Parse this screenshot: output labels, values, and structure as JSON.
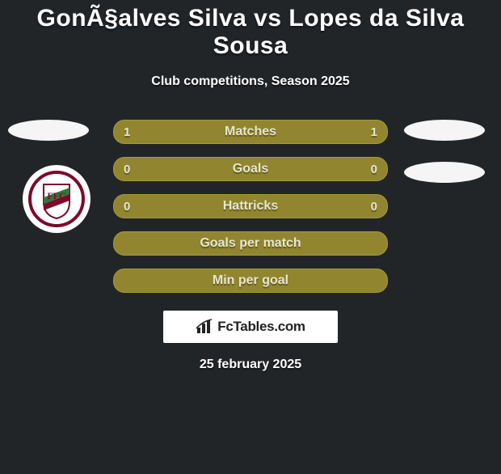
{
  "title": "GonÃ§alves Silva vs Lopes da Silva Sousa",
  "subtitle": "Club competitions, Season 2025",
  "date": "25 february 2025",
  "colors": {
    "olive": "#91862f",
    "olive_border": "#a79a36",
    "page_bg": "#222528"
  },
  "rows": [
    {
      "label": "Matches",
      "left": "1",
      "right": "1"
    },
    {
      "label": "Goals",
      "left": "0",
      "right": "0"
    },
    {
      "label": "Hattricks",
      "left": "0",
      "right": "0"
    },
    {
      "label": "Goals per match",
      "left": "",
      "right": ""
    },
    {
      "label": "Min per goal",
      "left": "",
      "right": ""
    }
  ],
  "logo_text": "FcTables.com",
  "badge": {
    "ring": "#7a0c2a",
    "field": "#2f7a3a",
    "flag_white": "#ffffff",
    "flag_green": "#2f7a3a",
    "flag_red": "#7a0c2a",
    "letters": "FFC"
  }
}
